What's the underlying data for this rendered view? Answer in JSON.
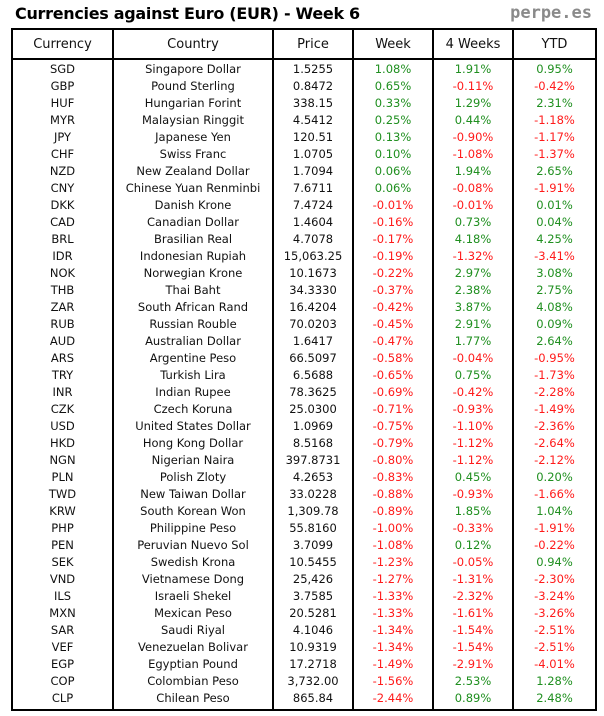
{
  "title": "Currencies against Euro (EUR) - Week 6",
  "brand": "perpe.es",
  "colors": {
    "positive": "#1f8f1f",
    "negative": "#ff1a1a"
  },
  "chart_data": {
    "type": "table",
    "columns": [
      "Currency",
      "Country",
      "Price",
      "Week",
      "4 Weeks",
      "YTD"
    ],
    "rows": [
      [
        "SGD",
        "Singapore Dollar",
        "1.5255",
        "1.08%",
        "1.91%",
        "0.95%"
      ],
      [
        "GBP",
        "Pound Sterling",
        "0.8472",
        "0.65%",
        "-0.11%",
        "-0.42%"
      ],
      [
        "HUF",
        "Hungarian Forint",
        "338.15",
        "0.33%",
        "1.29%",
        "2.31%"
      ],
      [
        "MYR",
        "Malaysian Ringgit",
        "4.5412",
        "0.25%",
        "0.44%",
        "-1.18%"
      ],
      [
        "JPY",
        "Japanese Yen",
        "120.51",
        "0.13%",
        "-0.90%",
        "-1.17%"
      ],
      [
        "CHF",
        "Swiss Franc",
        "1.0705",
        "0.10%",
        "-1.08%",
        "-1.37%"
      ],
      [
        "NZD",
        "New Zealand Dollar",
        "1.7094",
        "0.06%",
        "1.94%",
        "2.65%"
      ],
      [
        "CNY",
        "Chinese Yuan Renminbi",
        "7.6711",
        "0.06%",
        "-0.08%",
        "-1.91%"
      ],
      [
        "DKK",
        "Danish Krone",
        "7.4724",
        "-0.01%",
        "-0.01%",
        "0.01%"
      ],
      [
        "CAD",
        "Canadian Dollar",
        "1.4604",
        "-0.16%",
        "0.73%",
        "0.04%"
      ],
      [
        "BRL",
        "Brasilian Real",
        "4.7078",
        "-0.17%",
        "4.18%",
        "4.25%"
      ],
      [
        "IDR",
        "Indonesian Rupiah",
        "15,063.25",
        "-0.19%",
        "-1.32%",
        "-3.41%"
      ],
      [
        "NOK",
        "Norwegian Krone",
        "10.1673",
        "-0.22%",
        "2.97%",
        "3.08%"
      ],
      [
        "THB",
        "Thai Baht",
        "34.3330",
        "-0.37%",
        "2.38%",
        "2.75%"
      ],
      [
        "ZAR",
        "South African Rand",
        "16.4204",
        "-0.42%",
        "3.87%",
        "4.08%"
      ],
      [
        "RUB",
        "Russian Rouble",
        "70.0203",
        "-0.45%",
        "2.91%",
        "0.09%"
      ],
      [
        "AUD",
        "Australian Dollar",
        "1.6417",
        "-0.47%",
        "1.77%",
        "2.64%"
      ],
      [
        "ARS",
        "Argentine Peso",
        "66.5097",
        "-0.58%",
        "-0.04%",
        "-0.95%"
      ],
      [
        "TRY",
        "Turkish Lira",
        "6.5688",
        "-0.65%",
        "0.75%",
        "-1.73%"
      ],
      [
        "INR",
        "Indian Rupee",
        "78.3625",
        "-0.69%",
        "-0.42%",
        "-2.28%"
      ],
      [
        "CZK",
        "Czech Koruna",
        "25.0300",
        "-0.71%",
        "-0.93%",
        "-1.49%"
      ],
      [
        "USD",
        "United States Dollar",
        "1.0969",
        "-0.75%",
        "-1.10%",
        "-2.36%"
      ],
      [
        "HKD",
        "Hong Kong Dollar",
        "8.5168",
        "-0.79%",
        "-1.12%",
        "-2.64%"
      ],
      [
        "NGN",
        "Nigerian Naira",
        "397.8731",
        "-0.80%",
        "-1.12%",
        "-2.12%"
      ],
      [
        "PLN",
        "Polish Zloty",
        "4.2653",
        "-0.83%",
        "0.45%",
        "0.20%"
      ],
      [
        "TWD",
        "New Taiwan Dollar",
        "33.0228",
        "-0.88%",
        "-0.93%",
        "-1.66%"
      ],
      [
        "KRW",
        "South Korean Won",
        "1,309.78",
        "-0.89%",
        "1.85%",
        "1.04%"
      ],
      [
        "PHP",
        "Philippine Peso",
        "55.8160",
        "-1.00%",
        "-0.33%",
        "-1.91%"
      ],
      [
        "PEN",
        "Peruvian Nuevo Sol",
        "3.7099",
        "-1.08%",
        "0.12%",
        "-0.22%"
      ],
      [
        "SEK",
        "Swedish Krona",
        "10.5455",
        "-1.23%",
        "-0.05%",
        "0.94%"
      ],
      [
        "VND",
        "Vietnamese Dong",
        "25,426",
        "-1.27%",
        "-1.31%",
        "-2.30%"
      ],
      [
        "ILS",
        "Israeli Shekel",
        "3.7585",
        "-1.33%",
        "-2.32%",
        "-3.24%"
      ],
      [
        "MXN",
        "Mexican Peso",
        "20.5281",
        "-1.33%",
        "-1.61%",
        "-3.26%"
      ],
      [
        "SAR",
        "Saudi Riyal",
        "4.1046",
        "-1.34%",
        "-1.54%",
        "-2.51%"
      ],
      [
        "VEF",
        "Venezuelan Bolivar",
        "10.9319",
        "-1.34%",
        "-1.54%",
        "-2.51%"
      ],
      [
        "EGP",
        "Egyptian Pound",
        "17.2718",
        "-1.49%",
        "-2.91%",
        "-4.01%"
      ],
      [
        "COP",
        "Colombian Peso",
        "3,732.00",
        "-1.56%",
        "2.53%",
        "1.28%"
      ],
      [
        "CLP",
        "Chilean Peso",
        "865.84",
        "-2.44%",
        "0.89%",
        "2.48%"
      ]
    ]
  }
}
